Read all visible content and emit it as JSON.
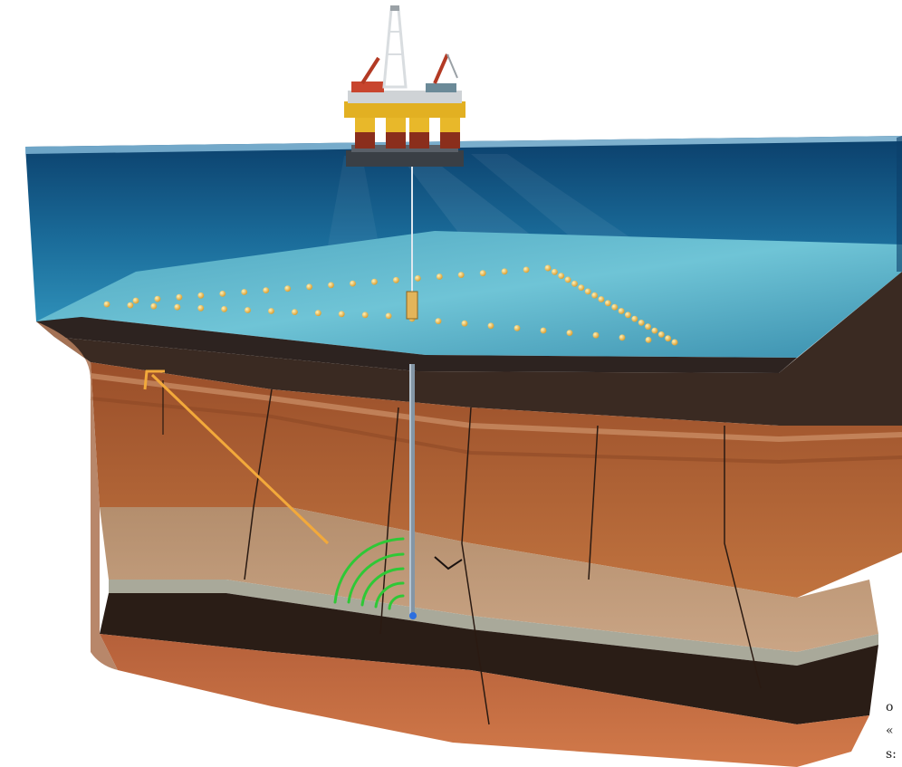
{
  "scene": {
    "description_free": true,
    "colors": {
      "sky": "#ffffff",
      "water_deep": "#0f4a78",
      "water_light": "#2e8fb8",
      "seabed": "#5ea9bf",
      "sediment_dark": "#2a1e18",
      "sediment_orange": "#b4693c",
      "sediment_tan": "#b99474",
      "sediment_deep": "#c06a3e",
      "rig_yellow": "#e8b82a",
      "node_gold": "#e8b449",
      "arrow": "#f2a93b",
      "waves": "#2fc836"
    },
    "icons": [
      "offshore-rig-icon",
      "drill-string-icon",
      "seismic-node-icon",
      "reflection-arrow-icon",
      "acoustic-wave-icon"
    ]
  },
  "cut_text": {
    "line1": "o",
    "line2": "«",
    "line3": "s:"
  }
}
